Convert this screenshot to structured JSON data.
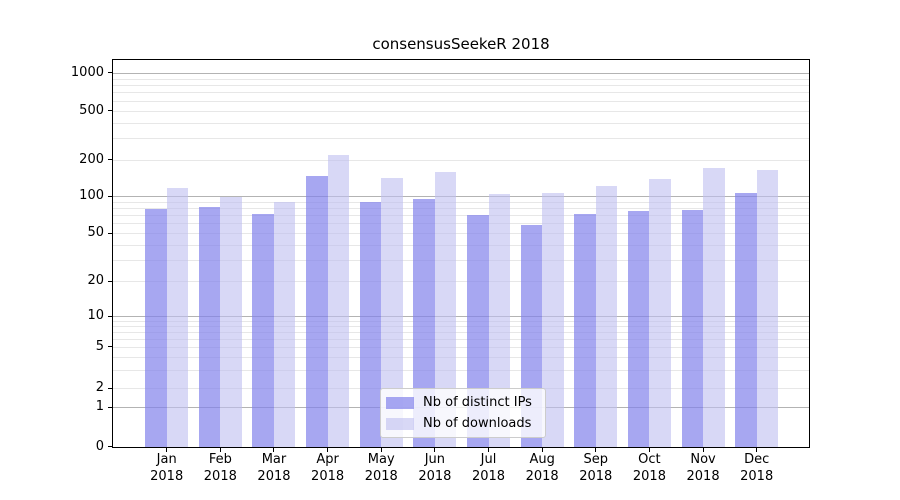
{
  "title": "consensusSeekeR 2018",
  "colors": {
    "ips": "rgba(130,130,235,0.7)",
    "downloads": "rgba(190,190,240,0.6)",
    "grid_major": "#b3b3b3",
    "grid_minor": "#e7e7e7",
    "spine": "#000000",
    "legend_bg": "rgba(255,255,255,0.8)",
    "legend_border": "#cccccc"
  },
  "legend": {
    "items": [
      {
        "label": "Nb of distinct IPs",
        "series": "ips"
      },
      {
        "label": "Nb of downloads",
        "series": "downloads"
      }
    ]
  },
  "y_axis": {
    "labels": [
      "1000",
      "500",
      "200",
      "100",
      "50",
      "20",
      "10",
      "5",
      "2",
      "1",
      "0"
    ],
    "values": [
      1000,
      500,
      200,
      100,
      50,
      20,
      10,
      5,
      2,
      1,
      0
    ]
  },
  "x_axis": {
    "months": [
      "Jan",
      "Feb",
      "Mar",
      "Apr",
      "May",
      "Jun",
      "Jul",
      "Aug",
      "Sep",
      "Oct",
      "Nov",
      "Dec"
    ],
    "year": "2018"
  },
  "chart_data": {
    "type": "bar",
    "title": "consensusSeekeR 2018",
    "categories": [
      "Jan 2018",
      "Feb 2018",
      "Mar 2018",
      "Apr 2018",
      "May 2018",
      "Jun 2018",
      "Jul 2018",
      "Aug 2018",
      "Sep 2018",
      "Oct 2018",
      "Nov 2018",
      "Dec 2018"
    ],
    "series": [
      {
        "name": "Nb of distinct IPs",
        "values": [
          78,
          82,
          71,
          146,
          89,
          94,
          70,
          58,
          72,
          76,
          77,
          105
        ]
      },
      {
        "name": "Nb of downloads",
        "values": [
          116,
          99,
          89,
          217,
          140,
          157,
          103,
          105,
          121,
          138,
          169,
          163
        ]
      }
    ],
    "yscale": "symlog",
    "y_ticks": [
      0,
      1,
      2,
      5,
      10,
      20,
      50,
      100,
      200,
      500,
      1000
    ],
    "ylim": [
      0,
      1275
    ],
    "grid": true,
    "legend_position": "lower center"
  }
}
